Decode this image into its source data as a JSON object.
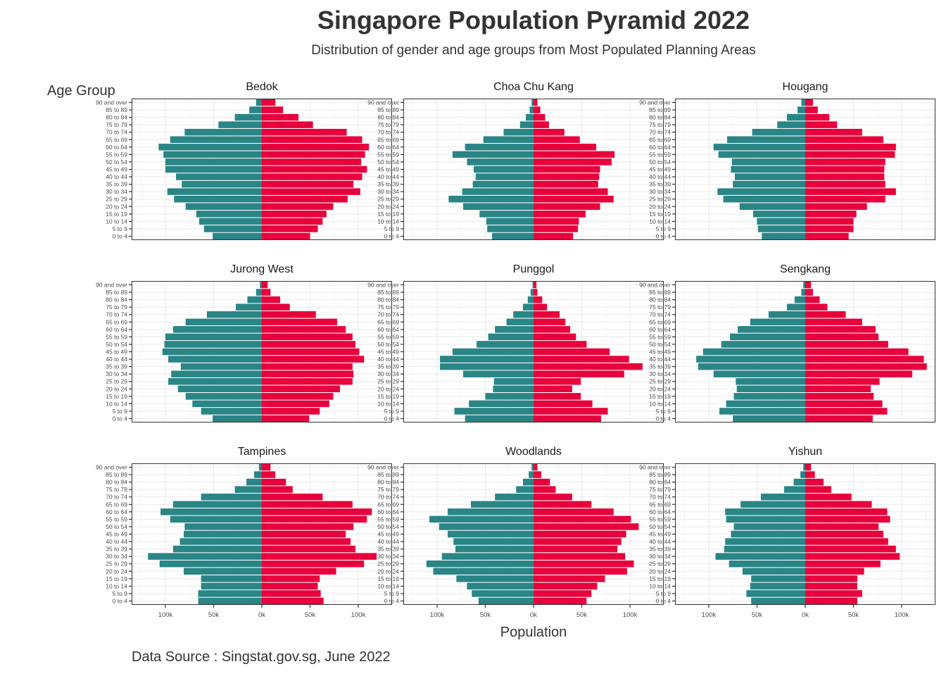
{
  "title": "Singapore Population Pyramid 2022",
  "subtitle": "Distribution of gender and age groups from Most Populated Planning Areas",
  "y_axis_title": "Age Group",
  "x_axis_title": "Population",
  "caption": "Data Source : Singstat.gov.sg, June 2022",
  "colors": {
    "male": "#2a8586",
    "female": "#e8003c",
    "grid": "#ebebeb",
    "frame": "#333333"
  },
  "chart_data": {
    "type": "bar",
    "orientation": "horizontal",
    "layout": "facet-grid 3x3",
    "age_groups": [
      "0 to 4",
      "5 to 9",
      "10 to 14",
      "15 to 19",
      "20 to 24",
      "25 to 29",
      "30 to 34",
      "35 to 39",
      "40 to 44",
      "45 to 49",
      "50 to 54",
      "55 to 59",
      "60 to 64",
      "65 to 69",
      "70 to 74",
      "75 to 79",
      "80 to 84",
      "85 to 89",
      "90 and over"
    ],
    "xlim": [
      -135000,
      135000
    ],
    "x_ticks": [
      -100000,
      -50000,
      0,
      50000,
      100000
    ],
    "x_tick_labels": [
      "100k",
      "50k",
      "0k",
      "50k",
      "100k"
    ],
    "ylabel": "Age Group",
    "xlabel": "Population",
    "facets": [
      {
        "name": "Bedok",
        "male": [
          51000,
          60000,
          65000,
          68000,
          79000,
          91000,
          98000,
          83000,
          89000,
          100000,
          100000,
          102000,
          107000,
          95000,
          80000,
          45000,
          28000,
          13000,
          6000
        ],
        "female": [
          50000,
          58000,
          63000,
          67000,
          74000,
          89000,
          102000,
          95000,
          104000,
          109000,
          103000,
          107000,
          111000,
          104000,
          88000,
          53000,
          38000,
          22000,
          14000
        ]
      },
      {
        "name": "Choa Chu Kang",
        "male": [
          43000,
          48000,
          49000,
          56000,
          73000,
          88000,
          74000,
          63000,
          60000,
          62000,
          69000,
          84000,
          71000,
          52000,
          31000,
          14000,
          8000,
          4000,
          2000
        ],
        "female": [
          41000,
          46000,
          47000,
          54000,
          69000,
          83000,
          77000,
          67000,
          68000,
          69000,
          81000,
          84000,
          65000,
          48000,
          32000,
          16000,
          12000,
          7000,
          4000
        ]
      },
      {
        "name": "Hougang",
        "male": [
          45000,
          49000,
          50000,
          54000,
          68000,
          85000,
          91000,
          75000,
          73000,
          77000,
          76000,
          90000,
          95000,
          81000,
          55000,
          29000,
          19000,
          8000,
          4000
        ],
        "female": [
          45000,
          50000,
          50000,
          53000,
          64000,
          83000,
          94000,
          83000,
          82000,
          82000,
          83000,
          93000,
          94000,
          81000,
          59000,
          33000,
          25000,
          13000,
          8000
        ]
      },
      {
        "name": "Jurong West",
        "male": [
          51000,
          63000,
          72000,
          79000,
          87000,
          97000,
          94000,
          84000,
          97000,
          103000,
          101000,
          100000,
          92000,
          79000,
          57000,
          27000,
          15000,
          6000,
          2000
        ],
        "female": [
          49000,
          60000,
          70000,
          74000,
          81000,
          94000,
          95000,
          94000,
          106000,
          101000,
          97000,
          94000,
          87000,
          78000,
          56000,
          29000,
          19000,
          9000,
          6000
        ]
      },
      {
        "name": "Punggol",
        "male": [
          71000,
          82000,
          67000,
          50000,
          42000,
          41000,
          73000,
          97000,
          97000,
          84000,
          59000,
          47000,
          40000,
          28000,
          21000,
          11000,
          6000,
          3000,
          1000
        ],
        "female": [
          70000,
          77000,
          61000,
          49000,
          40000,
          49000,
          94000,
          113000,
          99000,
          79000,
          55000,
          44000,
          38000,
          33000,
          27000,
          14000,
          9000,
          4000,
          3000
        ]
      },
      {
        "name": "Sengkang",
        "male": [
          75000,
          89000,
          82000,
          74000,
          71000,
          72000,
          95000,
          111000,
          113000,
          106000,
          87000,
          78000,
          70000,
          57000,
          38000,
          19000,
          11000,
          4000,
          2000
        ],
        "female": [
          70000,
          85000,
          80000,
          71000,
          68000,
          77000,
          111000,
          126000,
          123000,
          107000,
          86000,
          76000,
          73000,
          59000,
          42000,
          23000,
          15000,
          8000,
          6000
        ]
      },
      {
        "name": "Tampines",
        "male": [
          66000,
          66000,
          63000,
          63000,
          81000,
          106000,
          118000,
          92000,
          85000,
          81000,
          80000,
          95000,
          105000,
          92000,
          63000,
          28000,
          16000,
          8000,
          3000
        ],
        "female": [
          64000,
          61000,
          58000,
          60000,
          77000,
          106000,
          119000,
          97000,
          92000,
          87000,
          95000,
          109000,
          114000,
          94000,
          63000,
          32000,
          25000,
          14000,
          9000
        ]
      },
      {
        "name": "Woodlands",
        "male": [
          57000,
          64000,
          69000,
          80000,
          104000,
          111000,
          95000,
          81000,
          83000,
          89000,
          98000,
          108000,
          89000,
          65000,
          40000,
          18000,
          11000,
          5000,
          2000
        ],
        "female": [
          55000,
          60000,
          66000,
          74000,
          97000,
          104000,
          95000,
          87000,
          91000,
          96000,
          109000,
          101000,
          83000,
          60000,
          40000,
          23000,
          17000,
          8000,
          4000
        ]
      },
      {
        "name": "Yishun",
        "male": [
          56000,
          61000,
          57000,
          56000,
          65000,
          79000,
          93000,
          84000,
          83000,
          77000,
          74000,
          82000,
          83000,
          67000,
          46000,
          22000,
          12000,
          5000,
          2000
        ],
        "female": [
          54000,
          59000,
          54000,
          54000,
          61000,
          78000,
          98000,
          94000,
          86000,
          81000,
          76000,
          88000,
          85000,
          69000,
          48000,
          27000,
          19000,
          10000,
          6000
        ]
      }
    ]
  }
}
